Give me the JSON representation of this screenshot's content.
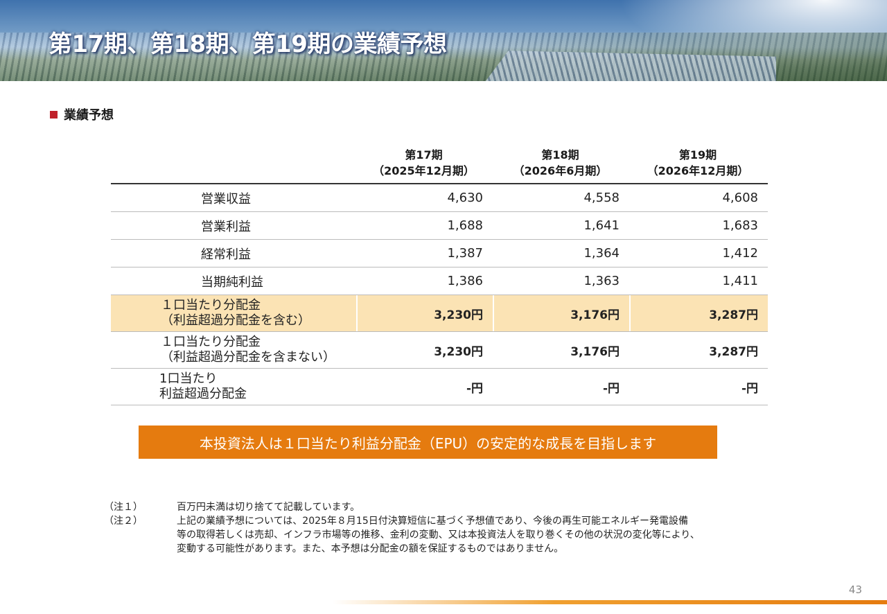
{
  "header": {
    "title": "第17期、第18期、第19期の業績予想"
  },
  "section": {
    "title": "業績予想"
  },
  "columns": [
    {
      "period": "第17期",
      "date": "（2025年12月期）"
    },
    {
      "period": "第18期",
      "date": "（2026年6月期）"
    },
    {
      "period": "第19期",
      "date": "（2026年12月期）"
    }
  ],
  "rows": [
    {
      "label": "営業収益",
      "values": [
        "4,630",
        "4,558",
        "4,608"
      ]
    },
    {
      "label": "営業利益",
      "values": [
        "1,688",
        "1,641",
        "1,683"
      ]
    },
    {
      "label": "経常利益",
      "values": [
        "1,387",
        "1,364",
        "1,412"
      ]
    },
    {
      "label": "当期純利益",
      "values": [
        "1,386",
        "1,363",
        "1,411"
      ]
    },
    {
      "label_line1": "１口当たり分配金",
      "label_line2": "（利益超過分配金を含む）",
      "values": [
        "3,230円",
        "3,176円",
        "3,287円"
      ]
    },
    {
      "label_line1": "１口当たり分配金",
      "label_line2": "（利益超過分配金を含まない）",
      "values": [
        "3,230円",
        "3,176円",
        "3,287円"
      ]
    },
    {
      "label_line1": "1口当たり",
      "label_line2": "利益超過分配金",
      "values": [
        "-円",
        "-円",
        "-円"
      ]
    }
  ],
  "callout": "本投資法人は１口当たり利益分配金（EPU）の安定的な成長を目指します",
  "notes": [
    {
      "tag": "（注１）",
      "lines": [
        "百万円未満は切り捨てて記載しています。"
      ]
    },
    {
      "tag": "（注２）",
      "lines": [
        "上記の業績予想については、2025年８月15日付決算短信に基づく予想値であり、今後の再生可能エネルギー発電設備",
        "等の取得若しくは売却、インフラ市場等の推移、金利の変動、又は本投資法人を取り巻くその他の状況の変化等により、",
        "変動する可能性があります。また、本予想は分配金の額を保証するものではありません。"
      ]
    }
  ],
  "page_number": "43",
  "colors": {
    "accent_orange": "#e57b0f",
    "highlight_row": "#fbe3b4",
    "bullet_red": "#c0202a"
  }
}
